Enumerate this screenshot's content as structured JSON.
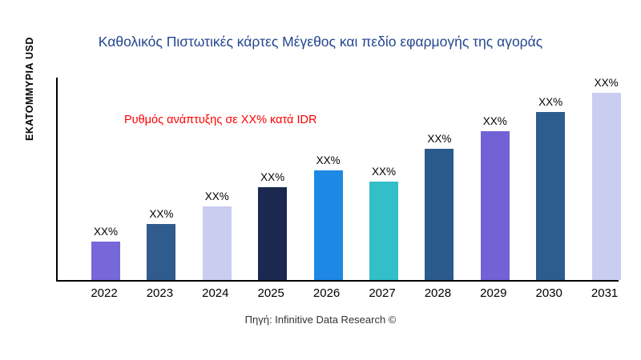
{
  "title": "Καθολικός Πιστωτικές κάρτες Μέγεθος και πεδίο εφαρμογής της αγοράς",
  "annotation": "Ρυθμός ανάπτυξης σε XX% κατά IDR",
  "source": "Πηγή: Infinitive Data Research ©",
  "colors": {
    "title": "#24478F",
    "annotation": "#FF0000",
    "axis": "#000000"
  },
  "chart_data": {
    "type": "bar",
    "title": "Καθολικός Πιστωτικές κάρτες Μέγεθος και πεδίο εφαρμογής της αγοράς",
    "xlabel": "",
    "ylabel": "ΕΚΑΤΟΜΜΥΡΙΑ USD",
    "categories": [
      "2022",
      "2023",
      "2024",
      "2025",
      "2026",
      "2027",
      "2028",
      "2029",
      "2030",
      "2031"
    ],
    "values": [
      20,
      29,
      38,
      48,
      57,
      51,
      68,
      77,
      87,
      97
    ],
    "bar_labels": [
      "XX%",
      "XX%",
      "XX%",
      "XX%",
      "XX%",
      "XX%",
      "XX%",
      "XX%",
      "XX%",
      "XX%"
    ],
    "bar_colors": [
      "#7668D9",
      "#2F5B8E",
      "#C9CDF0",
      "#1B2850",
      "#1E88E5",
      "#33BFC7",
      "#2B5A8C",
      "#7162D6",
      "#2D5C8F",
      "#C9CDF0"
    ],
    "ylim": [
      0,
      105
    ],
    "grid": false,
    "legend": false,
    "annotation": "Ρυθμός ανάπτυξης σε XX% κατά IDR"
  }
}
